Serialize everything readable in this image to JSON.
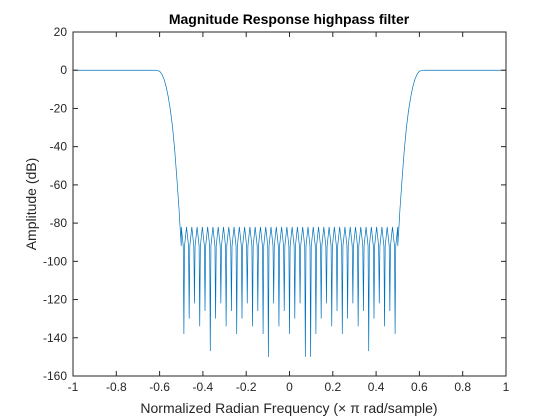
{
  "chart_data": {
    "type": "line",
    "title": "Magnitude Response highpass filter",
    "xlabel": "Normalized Radian Frequency (× π rad/sample)",
    "ylabel": "Amplitude (dB)",
    "xlim": [
      -1,
      1
    ],
    "ylim": [
      -160,
      20
    ],
    "xticks": [
      -1,
      -0.8,
      -0.6,
      -0.4,
      -0.2,
      0,
      0.2,
      0.4,
      0.6,
      0.8,
      1
    ],
    "xtick_labels": [
      "-1",
      "-0.8",
      "-0.6",
      "-0.4",
      "-0.2",
      "0",
      "0.2",
      "0.4",
      "0.6",
      "0.8",
      "1"
    ],
    "yticks": [
      20,
      0,
      -20,
      -40,
      -60,
      -80,
      -100,
      -120,
      -140,
      -160
    ],
    "ytick_labels": [
      "20",
      "0",
      "-20",
      "-40",
      "-60",
      "-80",
      "-100",
      "-120",
      "-140",
      "-160"
    ],
    "grid": false,
    "series_color": "#0072BD",
    "series": [
      {
        "x": [
          -1,
          -0.9,
          -0.8,
          -0.7,
          -0.62,
          -0.6,
          -0.59,
          -0.58,
          -0.57,
          -0.56,
          -0.55,
          -0.54,
          -0.53,
          -0.52,
          -0.51,
          -0.505,
          -0.5,
          0.5,
          0.505,
          0.51,
          0.52,
          0.53,
          0.54,
          0.55,
          0.56,
          0.57,
          0.58,
          0.59,
          0.6,
          0.62,
          0.7,
          0.8,
          0.9,
          1
        ],
        "values": [
          0,
          0,
          0,
          0,
          0,
          -0.5,
          -2,
          -4.5,
          -8.5,
          -14,
          -21,
          -30,
          -42,
          -57,
          -73,
          -83,
          -92,
          -92,
          -83,
          -73,
          -57,
          -42,
          -30,
          -21,
          -14,
          -8.5,
          -4.5,
          -2,
          -0.5,
          0,
          0,
          0,
          0,
          0
        ]
      }
    ],
    "stopband": {
      "x_range": [
        -0.5,
        0.5
      ],
      "ripple_peak_db": -82,
      "ripple_lobes": 41,
      "null_min_db": -130,
      "deep_nulls": [
        {
          "x": -0.37,
          "y": -147
        },
        {
          "x": -0.09,
          "y": -150
        },
        {
          "x": 0.085,
          "y": -150
        },
        {
          "x": 0.365,
          "y": -147
        }
      ]
    }
  }
}
